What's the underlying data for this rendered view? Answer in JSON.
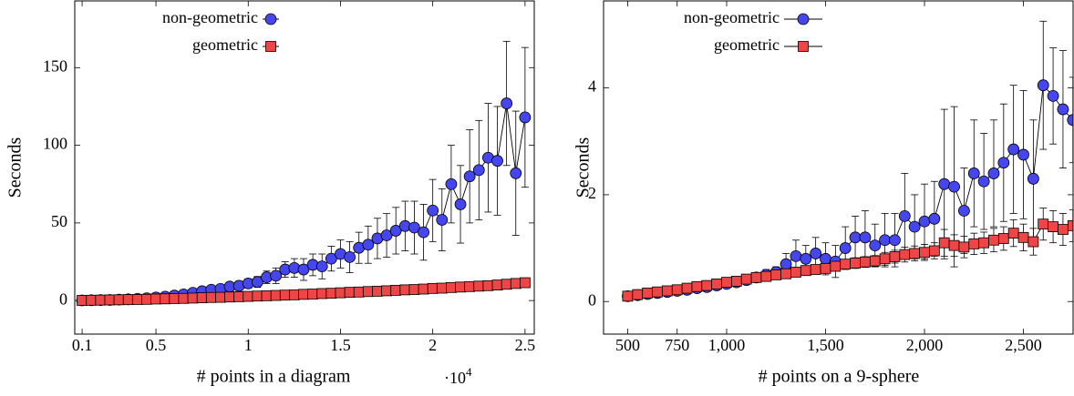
{
  "chart_data": [
    {
      "type": "line",
      "x_label": "# points in a diagram",
      "x_scale": {
        "base": "·10",
        "exponent": "4"
      },
      "y_label": "Seconds",
      "x": [
        0.1,
        0.15,
        0.2,
        0.25,
        0.3,
        0.35,
        0.4,
        0.45,
        0.5,
        0.55,
        0.6,
        0.65,
        0.7,
        0.75,
        0.8,
        0.85,
        0.9,
        0.95,
        1,
        1.05,
        1.1,
        1.15,
        1.2,
        1.25,
        1.3,
        1.35,
        1.4,
        1.45,
        1.5,
        1.55,
        1.6,
        1.65,
        1.7,
        1.75,
        1.8,
        1.85,
        1.9,
        1.95,
        2,
        2.05,
        2.1,
        2.15,
        2.2,
        2.25,
        2.3,
        2.35,
        2.4,
        2.45,
        2.5
      ],
      "series": [
        {
          "name": "non-geometric",
          "color": "#4646ee",
          "marker": "circle",
          "values": [
            0.1,
            0.2,
            0.3,
            0.4,
            0.6,
            0.8,
            1.1,
            1.5,
            2,
            2.5,
            3.2,
            4,
            5,
            6,
            7,
            7.5,
            9,
            9.5,
            11,
            12,
            15,
            16,
            20,
            21,
            20,
            23,
            22,
            27,
            30,
            28,
            34,
            36,
            40,
            42,
            45,
            48,
            47,
            44,
            58,
            52,
            75,
            62,
            80,
            84,
            92,
            90,
            127,
            82,
            118
          ],
          "errors": [
            0.05,
            0.1,
            0.1,
            0.2,
            0.2,
            0.3,
            0.4,
            0.5,
            0.6,
            0.7,
            0.8,
            1,
            1.2,
            1.5,
            2,
            2,
            2.5,
            3,
            3,
            3.5,
            4,
            5,
            5,
            6,
            7,
            7,
            8,
            8,
            9,
            10,
            10,
            12,
            13,
            14,
            15,
            16,
            17,
            18,
            20,
            20,
            25,
            25,
            30,
            32,
            35,
            35,
            40,
            40,
            45
          ]
        },
        {
          "name": "geometric",
          "color": "#ee4646",
          "marker": "square",
          "values": [
            0.1,
            0.2,
            0.3,
            0.4,
            0.5,
            0.6,
            0.7,
            0.8,
            1,
            1.1,
            1.3,
            1.4,
            1.6,
            1.8,
            2,
            2.1,
            2.3,
            2.5,
            2.7,
            2.9,
            3.1,
            3.3,
            3.5,
            3.7,
            4,
            4.2,
            4.5,
            4.7,
            5,
            5.3,
            5.5,
            5.8,
            6,
            6.3,
            6.6,
            6.9,
            7.1,
            7.4,
            7.8,
            8,
            8.4,
            8.7,
            9,
            9.3,
            9.6,
            10,
            10.5,
            11,
            11.5
          ],
          "errors": [
            0,
            0,
            0,
            0,
            0.1,
            0.1,
            0.1,
            0.1,
            0.1,
            0.1,
            0.2,
            0.2,
            0.2,
            0.2,
            0.3,
            0.3,
            0.3,
            0.4,
            0.4,
            0.4,
            0.5,
            0.5,
            0.5,
            0.6,
            0.6,
            0.7,
            0.7,
            0.8,
            0.8,
            0.9,
            0.9,
            1,
            1,
            1.1,
            1.1,
            1.2,
            1.2,
            1.3,
            1.3,
            1.4,
            1.5,
            1.5,
            1.6,
            1.7,
            1.8,
            1.9,
            2,
            2.1,
            2.2
          ]
        }
      ],
      "xlim": [
        0.06,
        2.55
      ],
      "xticks": [
        0.1,
        0.5,
        1,
        1.5,
        2,
        2.5
      ],
      "ylim": [
        -21.6,
        193
      ],
      "yticks": [
        0,
        50,
        100,
        150
      ],
      "legend_position": "top-left"
    },
    {
      "type": "line",
      "x_label": "# points on a 9-sphere",
      "y_label": "Seconds",
      "x": [
        500,
        550,
        600,
        650,
        700,
        750,
        800,
        850,
        900,
        950,
        1000,
        1050,
        1100,
        1150,
        1200,
        1250,
        1300,
        1350,
        1400,
        1450,
        1500,
        1550,
        1600,
        1650,
        1700,
        1750,
        1800,
        1850,
        1900,
        1950,
        2000,
        2050,
        2100,
        2150,
        2200,
        2250,
        2300,
        2350,
        2400,
        2450,
        2500,
        2550,
        2600,
        2650,
        2700,
        2750
      ],
      "series": [
        {
          "name": "non-geometric",
          "color": "#4646ee",
          "marker": "circle",
          "values": [
            0.1,
            0.12,
            0.14,
            0.16,
            0.18,
            0.2,
            0.22,
            0.25,
            0.27,
            0.3,
            0.33,
            0.36,
            0.4,
            0.45,
            0.5,
            0.55,
            0.7,
            0.85,
            0.8,
            0.9,
            0.8,
            0.75,
            1.0,
            1.2,
            1.2,
            1.05,
            1.15,
            1.15,
            1.6,
            1.4,
            1.5,
            1.55,
            2.2,
            2.15,
            1.7,
            2.4,
            2.25,
            2.4,
            2.6,
            2.85,
            2.75,
            2.3,
            4.05,
            3.85,
            3.6,
            3.4
          ],
          "errors": [
            0.02,
            0.02,
            0.02,
            0.02,
            0.03,
            0.03,
            0.03,
            0.04,
            0.04,
            0.05,
            0.05,
            0.06,
            0.06,
            0.08,
            0.1,
            0.1,
            0.2,
            0.3,
            0.25,
            0.3,
            0.3,
            0.3,
            0.4,
            0.4,
            0.5,
            0.4,
            0.5,
            0.5,
            0.8,
            0.6,
            0.7,
            0.7,
            1.4,
            1.5,
            0.8,
            1.0,
            0.9,
            1.0,
            1.1,
            1.2,
            1.2,
            1.1,
            1.2,
            0.9,
            1.1,
            0.8
          ]
        },
        {
          "name": "geometric",
          "color": "#ee4646",
          "marker": "square",
          "values": [
            0.1,
            0.13,
            0.16,
            0.18,
            0.2,
            0.22,
            0.25,
            0.28,
            0.3,
            0.33,
            0.36,
            0.38,
            0.42,
            0.45,
            0.47,
            0.5,
            0.52,
            0.55,
            0.58,
            0.6,
            0.62,
            0.66,
            0.7,
            0.72,
            0.74,
            0.76,
            0.8,
            0.84,
            0.88,
            0.9,
            0.92,
            0.95,
            1.1,
            1.05,
            1.02,
            1.08,
            1.1,
            1.15,
            1.18,
            1.28,
            1.2,
            1.12,
            1.45,
            1.4,
            1.35,
            1.42
          ],
          "errors": [
            0.01,
            0.01,
            0.01,
            0.01,
            0.01,
            0.02,
            0.02,
            0.02,
            0.02,
            0.03,
            0.03,
            0.03,
            0.04,
            0.04,
            0.05,
            0.05,
            0.06,
            0.06,
            0.07,
            0.07,
            0.08,
            0.08,
            0.09,
            0.1,
            0.1,
            0.1,
            0.12,
            0.12,
            0.14,
            0.14,
            0.15,
            0.15,
            0.25,
            0.2,
            0.2,
            0.2,
            0.2,
            0.22,
            0.22,
            0.25,
            0.25,
            0.25,
            0.3,
            0.3,
            0.3,
            0.3
          ]
        }
      ],
      "xlim": [
        378,
        2751
      ],
      "xticks": [
        500,
        750,
        {
          "value": 1000,
          "label": "1,000"
        },
        {
          "value": 1500,
          "label": "1,500"
        },
        {
          "value": 2000,
          "label": "2,000"
        },
        {
          "value": 2500,
          "label": "2,500"
        }
      ],
      "ylim": [
        -0.61,
        5.63
      ],
      "yticks": [
        0,
        2,
        4
      ],
      "legend_position": "top-left"
    }
  ]
}
